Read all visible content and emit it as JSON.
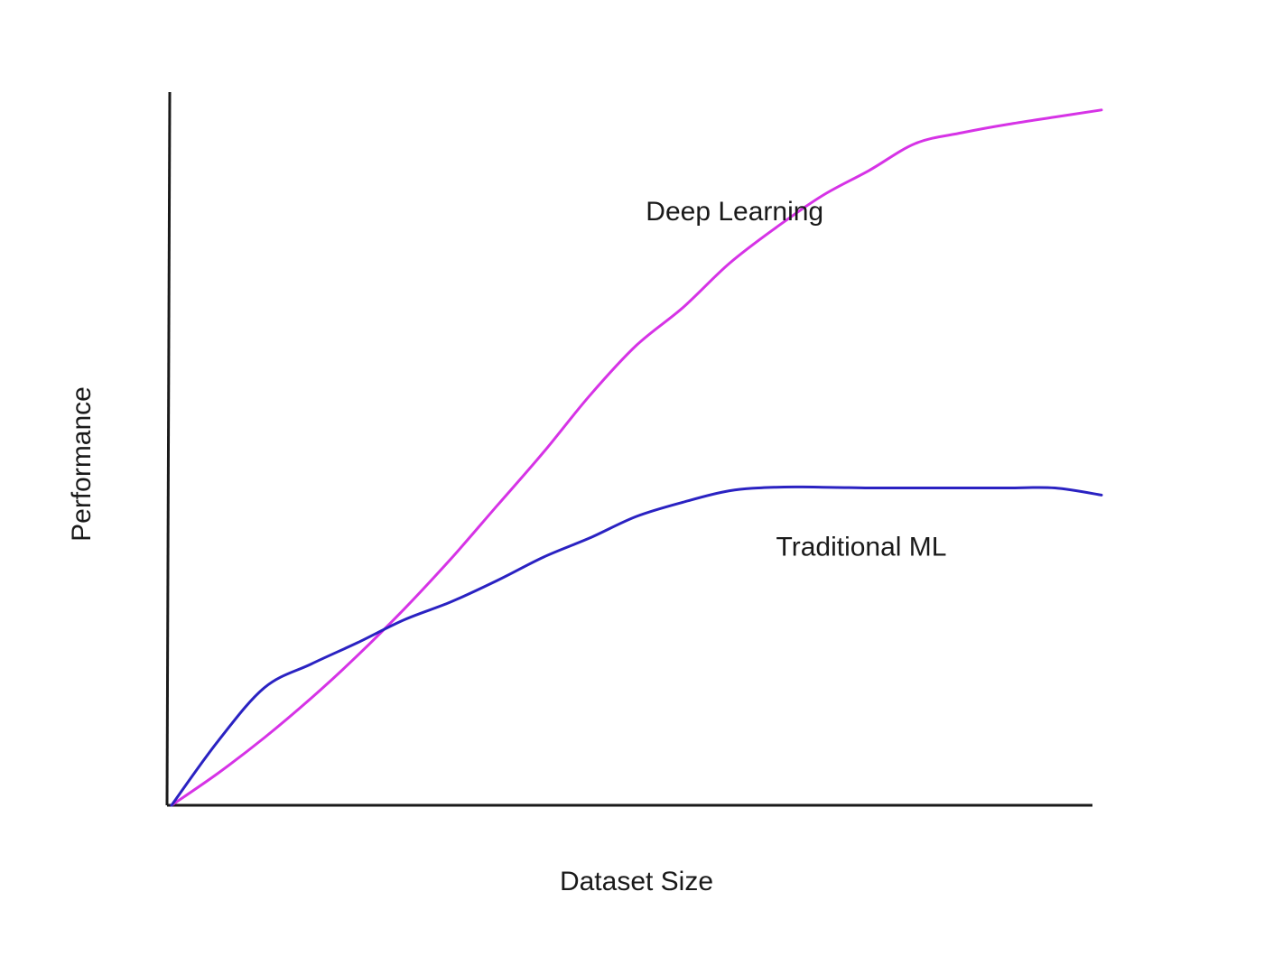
{
  "chart_data": {
    "type": "line",
    "title": "",
    "xlabel": "Dataset Size",
    "ylabel": "Performance",
    "xlim": [
      0,
      100
    ],
    "ylim": [
      0,
      100
    ],
    "grid": false,
    "legend": "none",
    "series": [
      {
        "name": "Deep Learning",
        "color": "#d633e6",
        "x": [
          0,
          5,
          10,
          15,
          20,
          25,
          30,
          35,
          40,
          45,
          50,
          55,
          60,
          65,
          70,
          75,
          80,
          85,
          90,
          95,
          100
        ],
        "y": [
          0,
          4.5,
          9.5,
          15,
          21,
          27.5,
          34.5,
          42,
          49.5,
          57.5,
          64.5,
          69.8,
          76,
          81,
          85.5,
          89,
          92.8,
          94.3,
          95.5,
          96.5,
          97.5
        ]
      },
      {
        "name": "Traditional ML",
        "color": "#2a22c2",
        "x": [
          0,
          5,
          10,
          15,
          20,
          25,
          30,
          35,
          40,
          45,
          50,
          55,
          60,
          65,
          70,
          75,
          80,
          85,
          90,
          95,
          100
        ],
        "y": [
          0,
          9,
          16.5,
          19.8,
          22.8,
          26,
          28.5,
          31.5,
          34.8,
          37.5,
          40.5,
          42.5,
          44.1,
          44.6,
          44.6,
          44.5,
          44.5,
          44.5,
          44.5,
          44.5,
          43.5
        ]
      }
    ],
    "annotations": [
      {
        "text": "Deep Learning",
        "x": 51,
        "y": 82,
        "series": "Deep Learning"
      },
      {
        "text": "Traditional ML",
        "x": 65,
        "y": 35,
        "series": "Traditional ML"
      }
    ]
  }
}
